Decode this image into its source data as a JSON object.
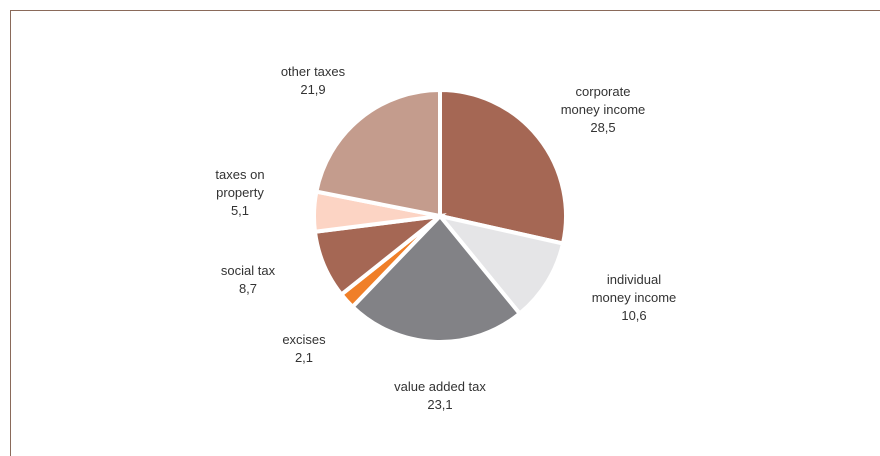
{
  "chart_data": {
    "type": "pie",
    "title": "",
    "start_angle_deg": 0,
    "direction": "clockwise",
    "slices": [
      {
        "label_lines": [
          "corporate",
          "money income"
        ],
        "value": 28.5,
        "value_text": "28,5",
        "color": "#a56754"
      },
      {
        "label_lines": [
          "individual",
          "money income"
        ],
        "value": 10.6,
        "value_text": "10,6",
        "color": "#e5e5e7"
      },
      {
        "label_lines": [
          "value added tax"
        ],
        "value": 23.1,
        "value_text": "23,1",
        "color": "#828286"
      },
      {
        "label_lines": [
          "excises"
        ],
        "value": 2.1,
        "value_text": "2,1",
        "color": "#f07f28"
      },
      {
        "label_lines": [
          "social tax"
        ],
        "value": 8.7,
        "value_text": "8,7",
        "color": "#a56754"
      },
      {
        "label_lines": [
          "taxes on",
          "property"
        ],
        "value": 5.1,
        "value_text": "5,1",
        "color": "#fcd4c4"
      },
      {
        "label_lines": [
          "other taxes"
        ],
        "value": 21.9,
        "value_text": "21,9",
        "color": "#c49c8d"
      }
    ]
  }
}
